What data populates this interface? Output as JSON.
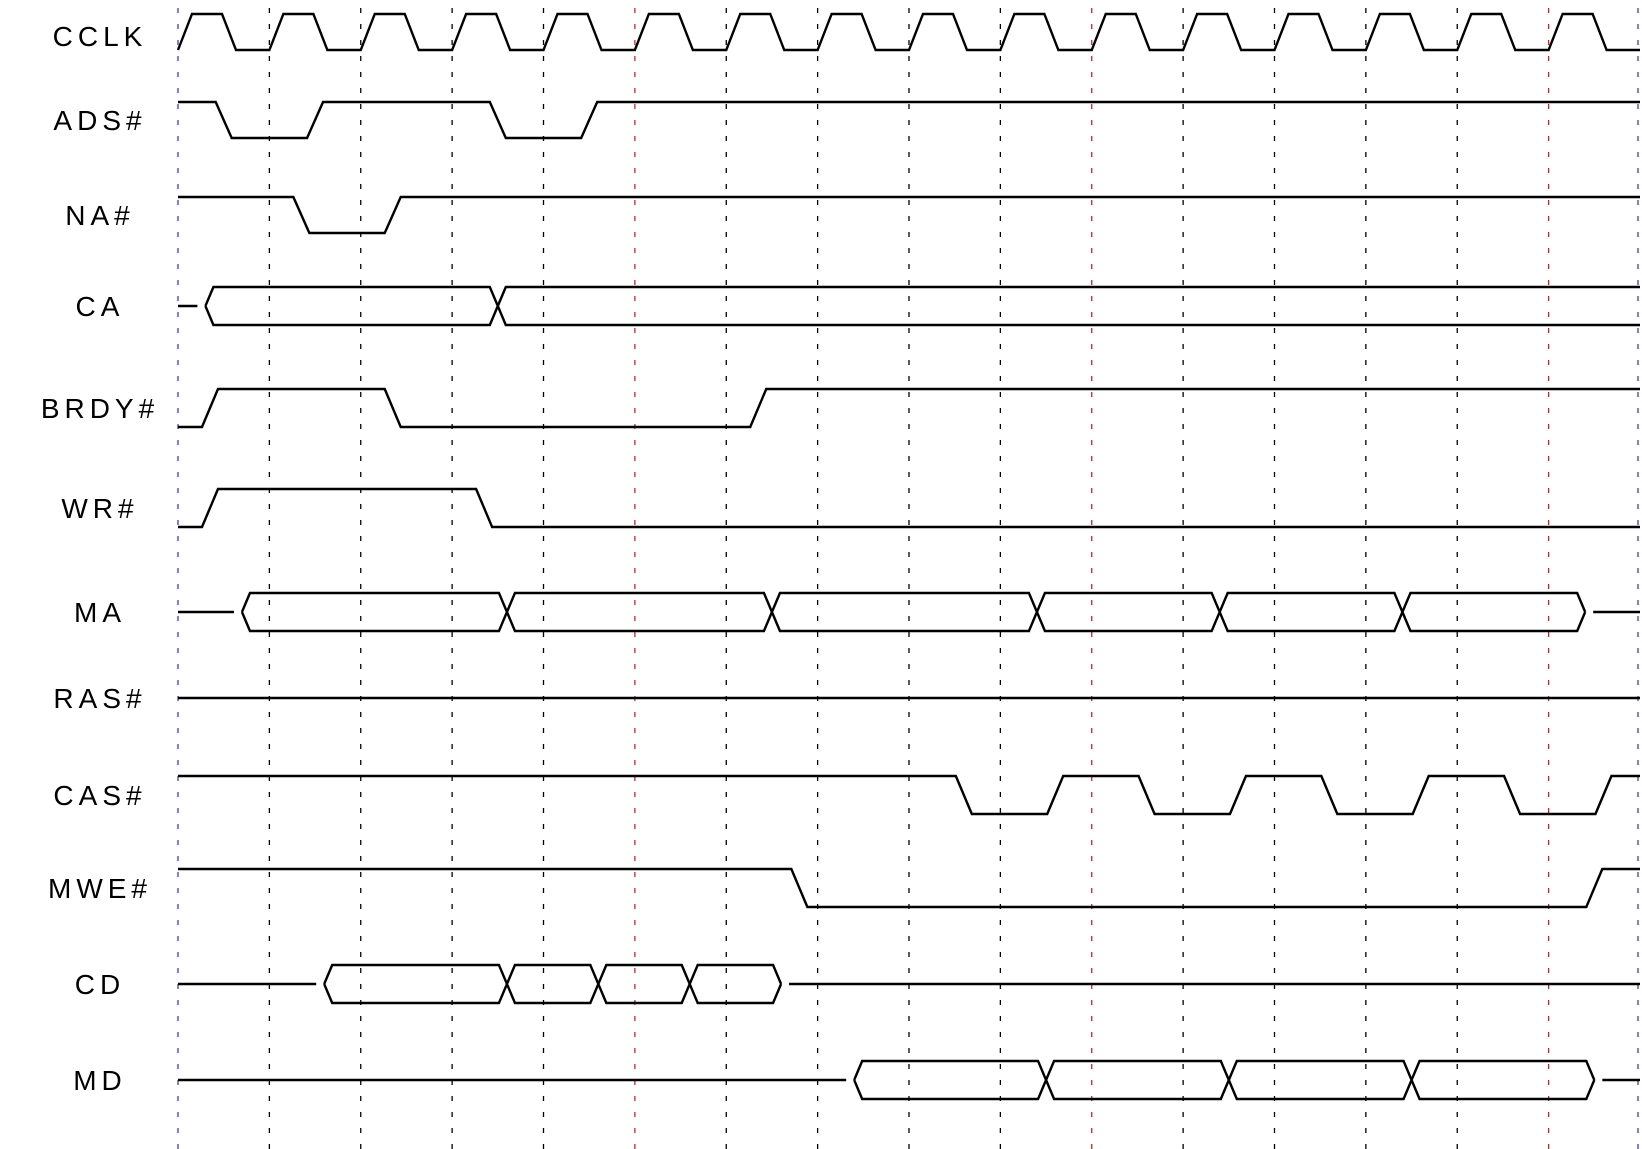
{
  "diagram": {
    "signals": [
      {
        "name": "CCLK",
        "kind": "clock"
      },
      {
        "name": "ADS#",
        "kind": "digital",
        "segments": [
          [
            0,
            1
          ],
          [
            0.5,
            0
          ],
          [
            1.5,
            1
          ],
          [
            3.5,
            0
          ],
          [
            4.5,
            1
          ],
          [
            16,
            1
          ]
        ]
      },
      {
        "name": "NA#",
        "kind": "digital",
        "segments": [
          [
            0,
            1
          ],
          [
            1.35,
            0
          ],
          [
            2.35,
            1
          ],
          [
            16,
            1
          ]
        ]
      },
      {
        "name": "CA",
        "kind": "bus",
        "segments": [
          [
            0,
            0.3,
            "idle"
          ],
          [
            0.3,
            3.5,
            "valid"
          ],
          [
            3.5,
            16,
            "valid"
          ]
        ]
      },
      {
        "name": "BRDY#",
        "kind": "digital",
        "segments": [
          [
            0,
            0
          ],
          [
            0.35,
            1
          ],
          [
            2.35,
            0
          ],
          [
            6.35,
            1
          ],
          [
            16,
            1
          ]
        ]
      },
      {
        "name": "WR#",
        "kind": "digital",
        "segments": [
          [
            0,
            0
          ],
          [
            0.35,
            1
          ],
          [
            3.35,
            0
          ],
          [
            16,
            0
          ]
        ]
      },
      {
        "name": "MA",
        "kind": "bus",
        "segments": [
          [
            0,
            0.7,
            "idle"
          ],
          [
            0.7,
            3.6,
            "valid"
          ],
          [
            3.6,
            6.5,
            "valid"
          ],
          [
            6.5,
            9.4,
            "valid"
          ],
          [
            9.4,
            11.4,
            "valid"
          ],
          [
            11.4,
            13.4,
            "valid"
          ],
          [
            13.4,
            15.4,
            "valid"
          ],
          [
            15.4,
            16,
            "idle"
          ]
        ]
      },
      {
        "name": "RAS#",
        "kind": "digital",
        "segments": [
          [
            0,
            0
          ],
          [
            16,
            0
          ]
        ]
      },
      {
        "name": "CAS#",
        "kind": "digital",
        "segments": [
          [
            0,
            1
          ],
          [
            8.6,
            0
          ],
          [
            9.6,
            1
          ],
          [
            10.6,
            0
          ],
          [
            11.6,
            1
          ],
          [
            12.6,
            0
          ],
          [
            13.6,
            1
          ],
          [
            14.6,
            0
          ],
          [
            15.6,
            1
          ]
        ]
      },
      {
        "name": "MWE#",
        "kind": "digital",
        "segments": [
          [
            0,
            1
          ],
          [
            6.8,
            0
          ],
          [
            15.5,
            1
          ],
          [
            16,
            1
          ]
        ]
      },
      {
        "name": "CD",
        "kind": "bus",
        "segments": [
          [
            0,
            1.6,
            "idle"
          ],
          [
            1.6,
            3.6,
            "valid"
          ],
          [
            3.6,
            4.6,
            "valid"
          ],
          [
            4.6,
            5.6,
            "valid"
          ],
          [
            5.6,
            6.6,
            "valid"
          ],
          [
            6.6,
            16,
            "idle"
          ]
        ]
      },
      {
        "name": "MD",
        "kind": "bus",
        "segments": [
          [
            0,
            7.4,
            "idle"
          ],
          [
            7.4,
            9.5,
            "valid"
          ],
          [
            9.5,
            11.5,
            "valid"
          ],
          [
            11.5,
            13.5,
            "valid"
          ],
          [
            13.5,
            15.5,
            "valid"
          ],
          [
            15.5,
            16,
            "idle"
          ]
        ]
      }
    ],
    "clock_periods": 16,
    "gridlines": [
      {
        "t": 0,
        "color": "#3a3ad8"
      },
      {
        "t": 1,
        "color": "#000000"
      },
      {
        "t": 2,
        "color": "#000000"
      },
      {
        "t": 3,
        "color": "#000000"
      },
      {
        "t": 4,
        "color": "#000000"
      },
      {
        "t": 5,
        "color": "#d42020"
      },
      {
        "t": 6,
        "color": "#000000"
      },
      {
        "t": 7,
        "color": "#000000"
      },
      {
        "t": 8,
        "color": "#000000"
      },
      {
        "t": 9,
        "color": "#000000"
      },
      {
        "t": 10,
        "color": "#d42020"
      },
      {
        "t": 11,
        "color": "#000000"
      },
      {
        "t": 12,
        "color": "#000000"
      },
      {
        "t": 13,
        "color": "#000000"
      },
      {
        "t": 14,
        "color": "#000000"
      },
      {
        "t": 15,
        "color": "#d42020"
      },
      {
        "t": 16,
        "color": "#3a3ad8"
      }
    ]
  }
}
